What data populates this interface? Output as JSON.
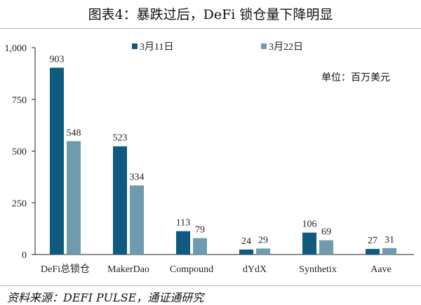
{
  "title": "图表4：暴跌过后，DeFi 锁仓量下降明显",
  "unit": "单位：百万美元",
  "source": "资料来源：DEFI PULSE，通证通研究",
  "chart_data": {
    "type": "bar",
    "title": "图表4：暴跌过后，DeFi 锁仓量下降明显",
    "categories": [
      "DeFi总锁仓",
      "MakerDao",
      "Compound",
      "dYdX",
      "Synthetix",
      "Aave"
    ],
    "series": [
      {
        "name": "3月11日",
        "color": "#0f5b80",
        "values": [
          903,
          523,
          113,
          24,
          106,
          27
        ]
      },
      {
        "name": "3月22日",
        "color": "#6f9bae",
        "values": [
          548,
          334,
          79,
          29,
          69,
          31
        ]
      }
    ],
    "ylim": [
      0,
      1000
    ],
    "yticks": [
      0,
      250,
      500,
      750,
      1000
    ],
    "ytick_labels": [
      "0",
      "250",
      "500",
      "750",
      "1,000"
    ],
    "legend": "top",
    "grid": false
  }
}
